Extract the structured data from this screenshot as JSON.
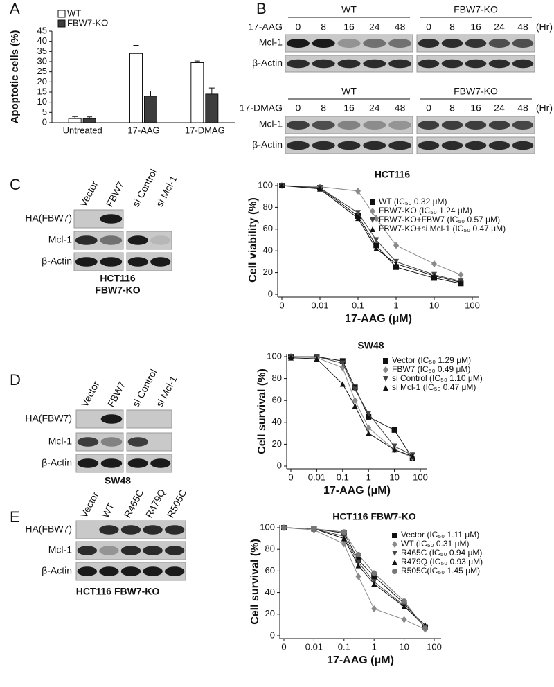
{
  "panel_labels": [
    "A",
    "B",
    "C",
    "D",
    "E"
  ],
  "chart_data": [
    {
      "type": "bar",
      "y_label": "Apoptotic cells (%)",
      "categories": [
        "Untreated",
        "17-AAG",
        "17-DMAG"
      ],
      "series": [
        {
          "name": "WT",
          "color": "#ffffff",
          "values": [
            2,
            34,
            29.5
          ],
          "errors": [
            1,
            4,
            0.8
          ]
        },
        {
          "name": "FBW7-KO",
          "color": "#3d3d3d",
          "values": [
            2,
            13,
            14
          ],
          "errors": [
            0.8,
            2.5,
            3
          ]
        }
      ],
      "ylim": [
        0,
        45
      ],
      "yticks": [
        0,
        5,
        10,
        15,
        20,
        25,
        30,
        35,
        40,
        45
      ]
    },
    {
      "type": "scatter",
      "title": "HCT116",
      "x_label": "17-AAG (μM)",
      "y_label": "Cell viability (%)",
      "log_x": true,
      "x": [
        0,
        0.01,
        0.1,
        0.3,
        1,
        10,
        50
      ],
      "series": [
        {
          "name": "WT (IC₅₀ 0.32 μM)",
          "color": "#111111",
          "marker": "square",
          "values": [
            100,
            98,
            72,
            45,
            25,
            15,
            10
          ]
        },
        {
          "name": "FBW7-KO (IC₅₀ 1.24 μM)",
          "color": "#8a8a8a",
          "marker": "diamond",
          "values": [
            100,
            99,
            95,
            70,
            45,
            28,
            18
          ]
        },
        {
          "name": "FBW7-KO+FBW7 (IC₅₀ 0.57 μM)",
          "color": "#444444",
          "marker": "down-triangle",
          "values": [
            100,
            98,
            75,
            50,
            30,
            18,
            12
          ]
        },
        {
          "name": "FBW7-KO+si Mcl-1 (IC₅₀ 0.47 μM)",
          "color": "#111111",
          "marker": "up-triangle",
          "values": [
            100,
            97,
            70,
            42,
            28,
            17,
            11
          ]
        }
      ],
      "xlim": [
        0,
        100
      ],
      "xticks": [
        0,
        0.01,
        0.1,
        1,
        10,
        100
      ],
      "ylim": [
        0,
        100
      ],
      "yticks": [
        0,
        20,
        40,
        60,
        80,
        100
      ]
    },
    {
      "type": "scatter",
      "title": "SW48",
      "x_label": "17-AAG (μM)",
      "y_label": "Cell survival (%)",
      "log_x": true,
      "x": [
        0,
        0.01,
        0.1,
        0.3,
        1,
        10,
        50
      ],
      "series": [
        {
          "name": "Vector (IC₅₀ 1.29 μM)",
          "color": "#111111",
          "marker": "square",
          "values": [
            100,
            100,
            96,
            72,
            45,
            33,
            7
          ]
        },
        {
          "name": "FBW7 (IC₅₀ 0.49 μM)",
          "color": "#8a8a8a",
          "marker": "diamond",
          "values": [
            100,
            99,
            90,
            60,
            35,
            15,
            8
          ]
        },
        {
          "name": "si Control (IC₅₀ 1.10 μM)",
          "color": "#444444",
          "marker": "down-triangle",
          "values": [
            100,
            100,
            94,
            70,
            48,
            18,
            10
          ]
        },
        {
          "name": "si Mcl-1 (IC₅₀ 0.47 μM)",
          "color": "#111111",
          "marker": "up-triangle",
          "values": [
            99,
            98,
            75,
            55,
            30,
            15,
            9
          ]
        }
      ],
      "xlim": [
        0,
        100
      ],
      "xticks": [
        0,
        0.01,
        0.1,
        1,
        10,
        100
      ],
      "ylim": [
        0,
        100
      ],
      "yticks": [
        0,
        20,
        40,
        60,
        80,
        100
      ]
    },
    {
      "type": "scatter",
      "title": "HCT116 FBW7-KO",
      "x_label": "17-AAG (μM)",
      "y_label": "Cell survival (%)",
      "log_x": true,
      "x": [
        0,
        0.01,
        0.1,
        0.3,
        1,
        10,
        50
      ],
      "series": [
        {
          "name": "Vector (IC₅₀ 1.11 μM)",
          "color": "#111111",
          "marker": "square",
          "values": [
            100,
            99,
            95,
            70,
            55,
            30,
            8
          ]
        },
        {
          "name": "WT (IC₅₀ 0.31 μM)",
          "color": "#8a8a8a",
          "marker": "diamond",
          "values": [
            100,
            98,
            85,
            55,
            25,
            15,
            6
          ]
        },
        {
          "name": "R465C (IC₅₀ 0.94 μM)",
          "color": "#444444",
          "marker": "down-triangle",
          "values": [
            100,
            99,
            92,
            68,
            50,
            28,
            8
          ]
        },
        {
          "name": "R479Q (IC₅₀ 0.93 μM)",
          "color": "#111111",
          "marker": "up-triangle",
          "values": [
            100,
            99,
            90,
            65,
            48,
            27,
            10
          ]
        },
        {
          "name": "R505C(IC₅₀ 1.45 μM)",
          "color": "#777777",
          "marker": "circle",
          "values": [
            100,
            99,
            96,
            75,
            58,
            32,
            7
          ]
        }
      ],
      "xlim": [
        0,
        100
      ],
      "xticks": [
        0,
        0.01,
        0.1,
        1,
        10,
        100
      ],
      "ylim": [
        0,
        100
      ],
      "yticks": [
        0,
        20,
        40,
        60,
        80,
        100
      ]
    }
  ],
  "blots": {
    "B": [
      {
        "treatment": "17-AAG",
        "groups": [
          "WT",
          "FBW7-KO"
        ],
        "times": [
          "0",
          "8",
          "16",
          "24",
          "48",
          "0",
          "8",
          "16",
          "24",
          "48"
        ],
        "unit": "(Hr)",
        "rows": [
          "Mcl-1",
          "β-Actin"
        ]
      },
      {
        "treatment": "17-DMAG",
        "groups": [
          "WT",
          "FBW7-KO"
        ],
        "times": [
          "0",
          "8",
          "16",
          "24",
          "48",
          "0",
          "8",
          "16",
          "24",
          "48"
        ],
        "unit": "(Hr)",
        "rows": [
          "Mcl-1",
          "β-Actin"
        ]
      }
    ],
    "C": {
      "lanes": [
        "Vector",
        "FBW7",
        "si Control",
        "si Mcl-1"
      ],
      "rows": [
        "HA(FBW7)",
        "Mcl-1",
        "β-Actin"
      ],
      "caption": [
        "HCT116",
        "FBW7-KO"
      ]
    },
    "D": {
      "lanes": [
        "Vector",
        "FBW7",
        "si Control",
        "si Mcl-1"
      ],
      "rows": [
        "HA(FBW7)",
        "Mcl-1",
        "β-Actin"
      ],
      "caption": [
        "SW48"
      ]
    },
    "E": {
      "lanes": [
        "Vector",
        "WT",
        "R465C",
        "R479Q",
        "R505C"
      ],
      "rows": [
        "HA(FBW7)",
        "Mcl-1",
        "β-Actin"
      ],
      "caption": [
        "HCT116 FBW7-KO"
      ]
    }
  }
}
